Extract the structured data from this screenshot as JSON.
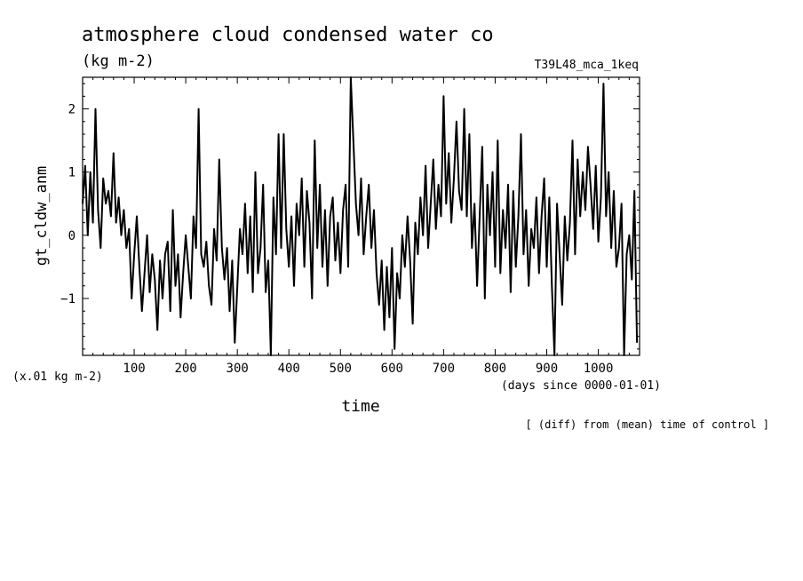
{
  "chart_data": {
    "type": "line",
    "title": "atmosphere cloud condensed water co",
    "units_label": "(kg m-2)",
    "run_label": "T39L48_mca_1keq",
    "ylabel": "gt_cldw_anm",
    "xlabel": "time",
    "x_unit_label": "(days since 0000-01-01)",
    "y_scale_label": "(x.01 kg m-2)",
    "footnote": "[ (diff) from (mean) time of control ]",
    "xlim": [
      0,
      1080
    ],
    "ylim": [
      -1.9,
      2.5
    ],
    "x_ticks": [
      100,
      200,
      300,
      400,
      500,
      600,
      700,
      800,
      900,
      1000
    ],
    "x_tick_labels": [
      "100",
      "200",
      "300",
      "400",
      "500",
      "600",
      "700",
      "800",
      "900",
      "1000"
    ],
    "y_ticks": [
      -1,
      0,
      1,
      2
    ],
    "y_tick_labels": [
      "−1",
      "0",
      "1",
      "2"
    ],
    "grid": false,
    "series": [
      {
        "points": [
          [
            0,
            0.5
          ],
          [
            5,
            1.1
          ],
          [
            10,
            0.0
          ],
          [
            15,
            1.0
          ],
          [
            20,
            0.2
          ],
          [
            25,
            2.0
          ],
          [
            30,
            0.4
          ],
          [
            35,
            -0.2
          ],
          [
            40,
            0.9
          ],
          [
            45,
            0.5
          ],
          [
            50,
            0.7
          ],
          [
            55,
            0.3
          ],
          [
            60,
            1.3
          ],
          [
            65,
            0.2
          ],
          [
            70,
            0.6
          ],
          [
            75,
            0.0
          ],
          [
            80,
            0.4
          ],
          [
            85,
            -0.2
          ],
          [
            90,
            0.1
          ],
          [
            95,
            -1.0
          ],
          [
            100,
            -0.3
          ],
          [
            105,
            0.3
          ],
          [
            110,
            -0.5
          ],
          [
            115,
            -1.2
          ],
          [
            120,
            -0.6
          ],
          [
            125,
            0.0
          ],
          [
            130,
            -0.9
          ],
          [
            135,
            -0.3
          ],
          [
            140,
            -0.7
          ],
          [
            145,
            -1.5
          ],
          [
            150,
            -0.4
          ],
          [
            155,
            -1.0
          ],
          [
            160,
            -0.3
          ],
          [
            165,
            -0.1
          ],
          [
            170,
            -1.2
          ],
          [
            175,
            0.4
          ],
          [
            180,
            -0.8
          ],
          [
            185,
            -0.3
          ],
          [
            190,
            -1.3
          ],
          [
            195,
            -0.6
          ],
          [
            200,
            0.0
          ],
          [
            205,
            -0.5
          ],
          [
            210,
            -1.0
          ],
          [
            215,
            0.3
          ],
          [
            220,
            -0.2
          ],
          [
            225,
            2.0
          ],
          [
            230,
            -0.3
          ],
          [
            235,
            -0.5
          ],
          [
            240,
            -0.1
          ],
          [
            245,
            -0.8
          ],
          [
            250,
            -1.1
          ],
          [
            255,
            0.1
          ],
          [
            260,
            -0.4
          ],
          [
            265,
            1.2
          ],
          [
            270,
            -0.2
          ],
          [
            275,
            -0.7
          ],
          [
            280,
            -0.2
          ],
          [
            285,
            -1.2
          ],
          [
            290,
            -0.4
          ],
          [
            295,
            -1.7
          ],
          [
            300,
            -0.8
          ],
          [
            305,
            0.1
          ],
          [
            310,
            -0.3
          ],
          [
            315,
            0.5
          ],
          [
            320,
            -0.6
          ],
          [
            325,
            0.3
          ],
          [
            330,
            -0.9
          ],
          [
            335,
            1.0
          ],
          [
            340,
            -0.6
          ],
          [
            345,
            -0.2
          ],
          [
            350,
            0.8
          ],
          [
            355,
            -0.9
          ],
          [
            360,
            -0.4
          ],
          [
            365,
            -1.9
          ],
          [
            370,
            0.6
          ],
          [
            375,
            -0.3
          ],
          [
            380,
            1.6
          ],
          [
            385,
            -0.2
          ],
          [
            390,
            1.6
          ],
          [
            395,
            0.1
          ],
          [
            400,
            -0.5
          ],
          [
            405,
            0.3
          ],
          [
            410,
            -0.8
          ],
          [
            415,
            0.5
          ],
          [
            420,
            0.0
          ],
          [
            425,
            0.9
          ],
          [
            430,
            -0.5
          ],
          [
            435,
            0.7
          ],
          [
            440,
            0.2
          ],
          [
            445,
            -1.0
          ],
          [
            450,
            1.5
          ],
          [
            455,
            -0.2
          ],
          [
            460,
            0.8
          ],
          [
            465,
            -0.5
          ],
          [
            470,
            0.4
          ],
          [
            475,
            -0.8
          ],
          [
            480,
            0.3
          ],
          [
            485,
            0.6
          ],
          [
            490,
            -0.4
          ],
          [
            495,
            0.2
          ],
          [
            500,
            -0.6
          ],
          [
            505,
            0.4
          ],
          [
            510,
            0.8
          ],
          [
            515,
            -0.5
          ],
          [
            520,
            2.5
          ],
          [
            525,
            1.5
          ],
          [
            530,
            0.5
          ],
          [
            535,
            0.0
          ],
          [
            540,
            0.9
          ],
          [
            545,
            -0.3
          ],
          [
            550,
            0.3
          ],
          [
            555,
            0.8
          ],
          [
            560,
            -0.2
          ],
          [
            565,
            0.4
          ],
          [
            570,
            -0.6
          ],
          [
            575,
            -1.1
          ],
          [
            580,
            -0.4
          ],
          [
            585,
            -1.5
          ],
          [
            590,
            -0.5
          ],
          [
            595,
            -1.3
          ],
          [
            600,
            -0.2
          ],
          [
            605,
            -1.8
          ],
          [
            610,
            -0.6
          ],
          [
            615,
            -1.0
          ],
          [
            620,
            0.0
          ],
          [
            625,
            -0.5
          ],
          [
            630,
            0.3
          ],
          [
            635,
            -0.4
          ],
          [
            640,
            -1.4
          ],
          [
            645,
            0.2
          ],
          [
            650,
            -0.3
          ],
          [
            655,
            0.6
          ],
          [
            660,
            0.0
          ],
          [
            665,
            1.1
          ],
          [
            670,
            -0.2
          ],
          [
            675,
            0.5
          ],
          [
            680,
            1.2
          ],
          [
            685,
            0.1
          ],
          [
            690,
            0.8
          ],
          [
            695,
            0.3
          ],
          [
            700,
            2.2
          ],
          [
            705,
            0.5
          ],
          [
            710,
            1.3
          ],
          [
            715,
            0.2
          ],
          [
            720,
            0.9
          ],
          [
            725,
            1.8
          ],
          [
            730,
            0.7
          ],
          [
            735,
            0.4
          ],
          [
            740,
            2.0
          ],
          [
            745,
            0.3
          ],
          [
            750,
            1.6
          ],
          [
            755,
            -0.2
          ],
          [
            760,
            0.5
          ],
          [
            765,
            -0.8
          ],
          [
            770,
            0.3
          ],
          [
            775,
            1.4
          ],
          [
            780,
            -1.0
          ],
          [
            785,
            0.8
          ],
          [
            790,
            0.0
          ],
          [
            795,
            1.0
          ],
          [
            800,
            -0.5
          ],
          [
            805,
            1.5
          ],
          [
            810,
            -0.6
          ],
          [
            815,
            0.4
          ],
          [
            820,
            -0.2
          ],
          [
            825,
            0.8
          ],
          [
            830,
            -0.9
          ],
          [
            835,
            0.7
          ],
          [
            840,
            -0.5
          ],
          [
            845,
            0.3
          ],
          [
            850,
            1.6
          ],
          [
            855,
            -0.3
          ],
          [
            860,
            0.4
          ],
          [
            865,
            -0.8
          ],
          [
            870,
            0.1
          ],
          [
            875,
            -0.2
          ],
          [
            880,
            0.6
          ],
          [
            885,
            -0.6
          ],
          [
            890,
            0.3
          ],
          [
            895,
            0.9
          ],
          [
            900,
            -0.5
          ],
          [
            905,
            0.6
          ],
          [
            910,
            -0.8
          ],
          [
            915,
            -1.9
          ],
          [
            920,
            0.5
          ],
          [
            925,
            -0.3
          ],
          [
            930,
            -1.1
          ],
          [
            935,
            0.3
          ],
          [
            940,
            -0.4
          ],
          [
            945,
            0.2
          ],
          [
            950,
            1.5
          ],
          [
            955,
            -0.3
          ],
          [
            960,
            1.2
          ],
          [
            965,
            0.3
          ],
          [
            970,
            1.0
          ],
          [
            975,
            0.4
          ],
          [
            980,
            1.4
          ],
          [
            985,
            0.8
          ],
          [
            990,
            0.1
          ],
          [
            995,
            1.1
          ],
          [
            1000,
            -0.1
          ],
          [
            1005,
            0.6
          ],
          [
            1010,
            2.4
          ],
          [
            1015,
            0.3
          ],
          [
            1020,
            1.0
          ],
          [
            1025,
            -0.2
          ],
          [
            1030,
            0.7
          ],
          [
            1035,
            -0.5
          ],
          [
            1040,
            -0.2
          ],
          [
            1045,
            0.5
          ],
          [
            1050,
            -1.9
          ],
          [
            1055,
            -0.3
          ],
          [
            1060,
            0.0
          ],
          [
            1065,
            -0.7
          ],
          [
            1070,
            0.7
          ],
          [
            1075,
            -1.7
          ]
        ]
      }
    ]
  }
}
